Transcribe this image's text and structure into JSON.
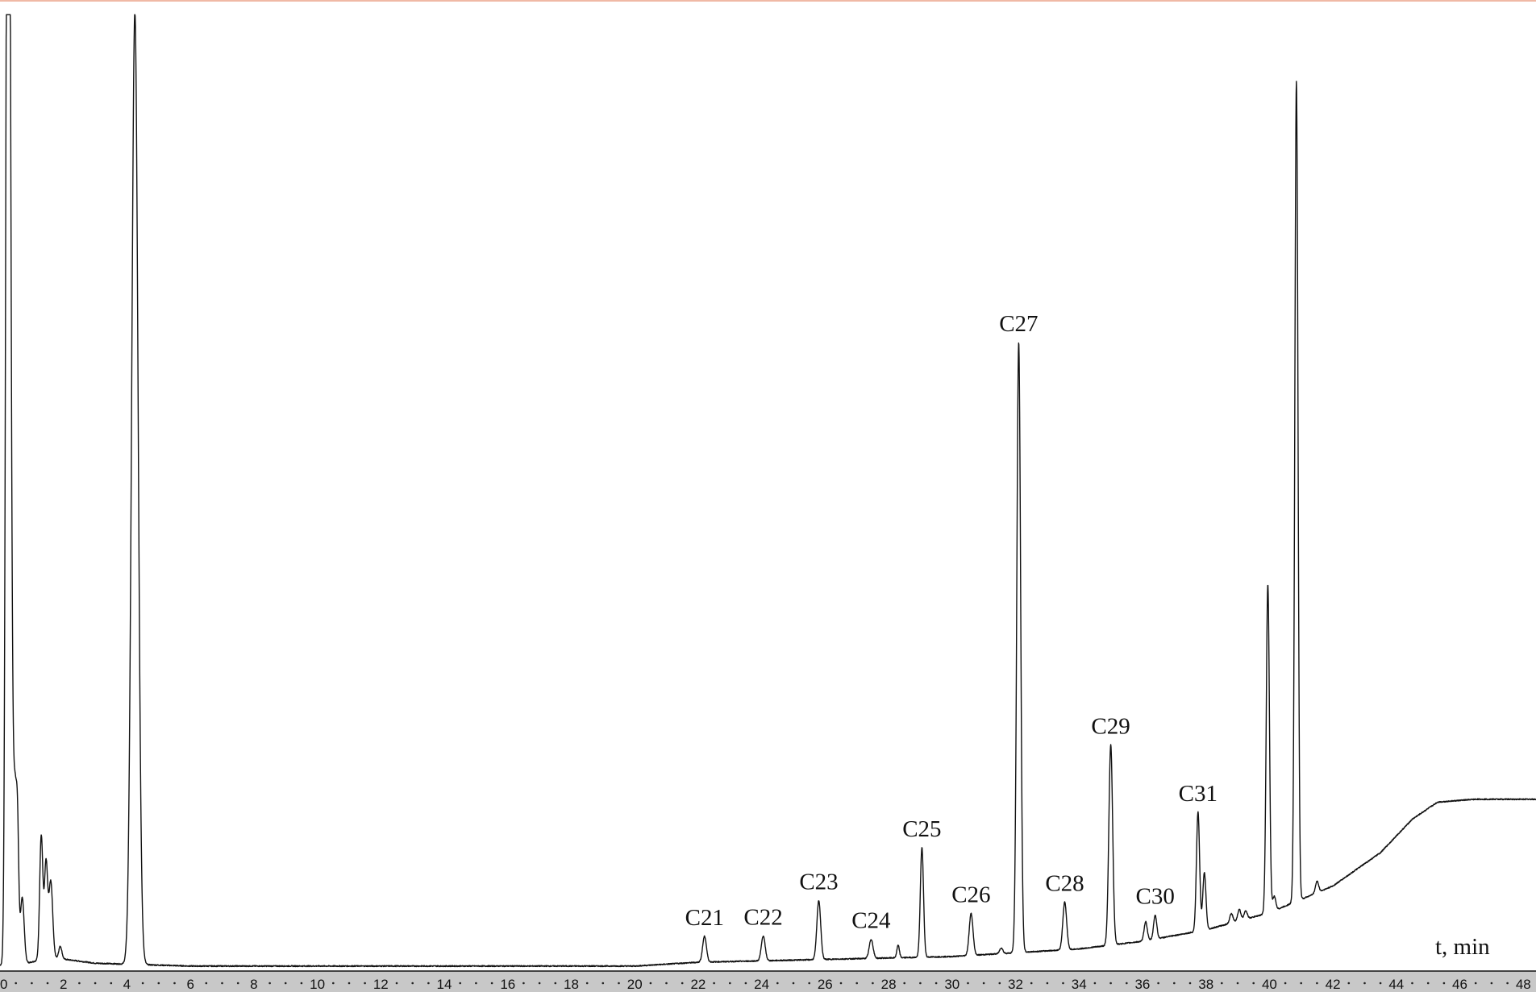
{
  "chart_data": {
    "type": "line",
    "title": "",
    "xlabel": "t, min",
    "ylabel": "",
    "xlim": [
      0,
      48.4
    ],
    "ylim": [
      0,
      100
    ],
    "x_ticks": [
      "0",
      "2",
      "4",
      "6",
      "8",
      "10",
      "12",
      "14",
      "16",
      "18",
      "20",
      "22",
      "24",
      "26",
      "28",
      "30",
      "32",
      "34",
      "36",
      "38",
      "40",
      "42",
      "44",
      "46",
      "48"
    ],
    "grid": false,
    "legend": "none",
    "colors": {
      "line": "#111111",
      "axis_band": "#c8c8c8",
      "border": "#f0b9a5"
    },
    "series": [
      {
        "baseline": [
          [
            0,
            0.2
          ],
          [
            0.7,
            0.3
          ],
          [
            1.6,
            1.0
          ],
          [
            3.0,
            0.4
          ],
          [
            6,
            0.1
          ],
          [
            20,
            0.1
          ],
          [
            22,
            0.5
          ],
          [
            26,
            0.8
          ],
          [
            30,
            1.1
          ],
          [
            34,
            1.9
          ],
          [
            36,
            2.7
          ],
          [
            38,
            3.9
          ],
          [
            40,
            5.7
          ],
          [
            42,
            8.5
          ],
          [
            43.5,
            12.0
          ],
          [
            44.5,
            15.5
          ],
          [
            45.3,
            17.3
          ],
          [
            46.5,
            17.6
          ],
          [
            48.4,
            17.6
          ]
        ],
        "peaks": [
          {
            "x": 0.22,
            "h": 99.9,
            "w": 0.05
          },
          {
            "x": 0.3,
            "h": 99.9,
            "w": 0.05
          },
          {
            "x": 0.4,
            "h": 17.0,
            "w": 0.05
          },
          {
            "x": 0.48,
            "h": 12.0,
            "w": 0.04
          },
          {
            "x": 0.55,
            "h": 14.5,
            "w": 0.04
          },
          {
            "x": 0.7,
            "h": 7.0,
            "w": 0.06
          },
          {
            "x": 1.3,
            "h": 13.0,
            "w": 0.05
          },
          {
            "x": 1.45,
            "h": 10.0,
            "w": 0.05
          },
          {
            "x": 1.6,
            "h": 8.0,
            "w": 0.06
          },
          {
            "x": 1.9,
            "h": 1.3,
            "w": 0.05
          },
          {
            "x": 4.25,
            "h": 99.9,
            "w": 0.1
          },
          {
            "x": 22.2,
            "h": 2.7,
            "w": 0.06,
            "label": "C21"
          },
          {
            "x": 24.05,
            "h": 2.6,
            "w": 0.06,
            "label": "C22"
          },
          {
            "x": 25.8,
            "h": 6.2,
            "w": 0.06,
            "label": "C23"
          },
          {
            "x": 27.45,
            "h": 2.0,
            "w": 0.06,
            "label": "C24"
          },
          {
            "x": 28.3,
            "h": 1.3,
            "w": 0.04
          },
          {
            "x": 29.05,
            "h": 11.5,
            "w": 0.05,
            "label": "C25"
          },
          {
            "x": 30.6,
            "h": 4.4,
            "w": 0.06,
            "label": "C26"
          },
          {
            "x": 31.55,
            "h": 0.6,
            "w": 0.05
          },
          {
            "x": 32.1,
            "h": 64.0,
            "w": 0.06,
            "label": "C27"
          },
          {
            "x": 33.55,
            "h": 5.0,
            "w": 0.06,
            "label": "C28"
          },
          {
            "x": 35.0,
            "h": 21.0,
            "w": 0.06,
            "label": "C29"
          },
          {
            "x": 36.1,
            "h": 2.0,
            "w": 0.05
          },
          {
            "x": 36.4,
            "h": 2.5,
            "w": 0.05,
            "label": "C30"
          },
          {
            "x": 37.75,
            "h": 12.5,
            "w": 0.05,
            "label": "C31"
          },
          {
            "x": 37.95,
            "h": 6.0,
            "w": 0.05
          },
          {
            "x": 38.8,
            "h": 1.0,
            "w": 0.05
          },
          {
            "x": 39.05,
            "h": 1.2,
            "w": 0.05
          },
          {
            "x": 39.25,
            "h": 0.9,
            "w": 0.05
          },
          {
            "x": 39.95,
            "h": 34.5,
            "w": 0.05
          },
          {
            "x": 40.15,
            "h": 1.5,
            "w": 0.05
          },
          {
            "x": 40.85,
            "h": 86.0,
            "w": 0.05
          },
          {
            "x": 41.5,
            "h": 1.2,
            "w": 0.05
          }
        ]
      }
    ]
  }
}
